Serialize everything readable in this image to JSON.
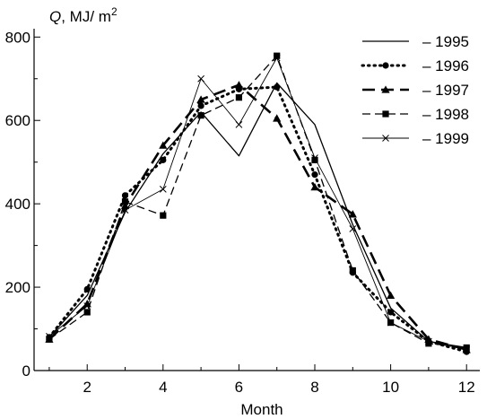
{
  "chart_data": {
    "type": "line",
    "ylabel_parts": {
      "q": "Q",
      "units": ", MJ/ m",
      "exp": "2"
    },
    "xlabel": "Month",
    "xlim": [
      0.6,
      12.35
    ],
    "ylim": [
      0,
      820
    ],
    "xticks": [
      2,
      4,
      6,
      8,
      10,
      12
    ],
    "yticks": [
      0,
      200,
      400,
      600,
      800
    ],
    "grid": false,
    "legend_position": "top-right",
    "x": [
      1,
      2,
      3,
      4,
      5,
      6,
      7,
      8,
      9,
      10,
      11,
      12
    ],
    "series": [
      {
        "name": "– 1995",
        "style": "solid",
        "width": 1.3,
        "dash": "",
        "marker": "none",
        "values": [
          80,
          180,
          380,
          520,
          620,
          515,
          690,
          590,
          350,
          150,
          70,
          55
        ]
      },
      {
        "name": "– 1996",
        "style": "dotted",
        "width": 3,
        "dash": "1.5 5",
        "marker": "circle",
        "values": [
          80,
          195,
          420,
          505,
          635,
          675,
          680,
          470,
          235,
          140,
          70,
          45
        ]
      },
      {
        "name": "– 1997",
        "style": "dashed",
        "width": 2.6,
        "dash": "14 7",
        "marker": "triangle",
        "values": [
          75,
          160,
          395,
          540,
          650,
          685,
          605,
          440,
          375,
          180,
          75,
          50
        ]
      },
      {
        "name": "– 1998",
        "style": "dashed",
        "width": 1.3,
        "dash": "9 5",
        "marker": "square",
        "values": [
          75,
          140,
          405,
          372,
          612,
          655,
          755,
          505,
          240,
          115,
          65,
          55
        ]
      },
      {
        "name": "– 1999",
        "style": "solid",
        "width": 0.9,
        "dash": "",
        "marker": "x",
        "values": [
          82,
          155,
          385,
          435,
          700,
          590,
          750,
          510,
          340,
          115,
          70,
          50
        ]
      }
    ]
  }
}
